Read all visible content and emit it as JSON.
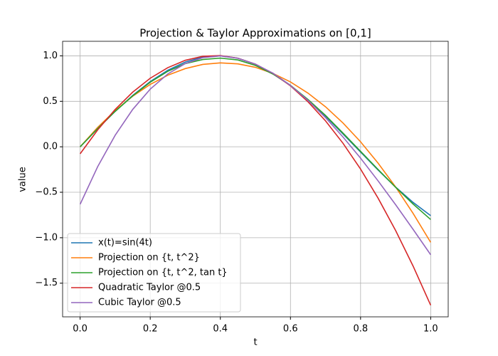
{
  "chart_data": {
    "type": "line",
    "title": "Projection & Taylor Approximations on [0,1]",
    "x_label": "t",
    "y_label": "value",
    "x": [
      0,
      0.05,
      0.1,
      0.15,
      0.2,
      0.25,
      0.3,
      0.35,
      0.4,
      0.45,
      0.5,
      0.55,
      0.6,
      0.65,
      0.7,
      0.75,
      0.8,
      0.85,
      0.9,
      0.95,
      1
    ],
    "series": [
      {
        "name": "x(t)=sin(4t)",
        "color": "#1f77b4",
        "values": [
          0,
          0.199,
          0.389,
          0.565,
          0.717,
          0.841,
          0.932,
          0.985,
          1.0,
          0.974,
          0.909,
          0.808,
          0.675,
          0.516,
          0.335,
          0.141,
          -0.058,
          -0.256,
          -0.443,
          -0.612,
          -0.757
        ]
      },
      {
        "name": "Projection on {t, t^2}",
        "color": "#ff7f0e",
        "values": [
          0,
          0.213,
          0.399,
          0.556,
          0.686,
          0.787,
          0.86,
          0.906,
          0.923,
          0.912,
          0.874,
          0.807,
          0.713,
          0.59,
          0.44,
          0.261,
          0.055,
          -0.18,
          -0.442,
          -0.733,
          -1.051
        ]
      },
      {
        "name": "Projection on {t, t^2, tan t}",
        "color": "#2ca02c",
        "values": [
          0,
          0.2,
          0.39,
          0.56,
          0.71,
          0.83,
          0.915,
          0.96,
          0.975,
          0.955,
          0.895,
          0.8,
          0.675,
          0.52,
          0.345,
          0.15,
          -0.05,
          -0.25,
          -0.445,
          -0.63,
          -0.8
        ]
      },
      {
        "name": "Quadratic Taylor @0.5",
        "color": "#d62728",
        "values": [
          -0.077,
          0.185,
          0.411,
          0.601,
          0.754,
          0.87,
          0.951,
          0.995,
          1.003,
          0.974,
          0.909,
          0.808,
          0.67,
          0.495,
          0.285,
          0.038,
          -0.245,
          -0.565,
          -0.921,
          -1.313,
          -1.742
        ]
      },
      {
        "name": "Cubic Taylor @0.5",
        "color": "#9467bd",
        "values": [
          -0.632,
          -0.219,
          0.127,
          0.411,
          0.634,
          0.801,
          0.915,
          0.98,
          0.999,
          0.973,
          0.909,
          0.809,
          0.674,
          0.51,
          0.321,
          0.107,
          -0.125,
          -0.375,
          -0.637,
          -0.909,
          -1.187
        ]
      }
    ],
    "xlim": [
      -0.05,
      1.05
    ],
    "ylim": [
      -1.87,
      1.16
    ],
    "xticks": [
      {
        "value": 0,
        "label": "0.0"
      },
      0.2,
      0.4,
      0.6,
      0.8,
      {
        "value": 1,
        "label": "1.0"
      }
    ],
    "yticks": [
      {
        "value": -1.5,
        "label": "−1.5"
      },
      {
        "value": -1,
        "label": "−1.0"
      },
      {
        "value": -0.5,
        "label": "−0.5"
      },
      {
        "value": 0,
        "label": "0.0"
      },
      0.5,
      {
        "value": 1,
        "label": "1.0"
      }
    ],
    "grid": true,
    "legend": "lower left"
  }
}
